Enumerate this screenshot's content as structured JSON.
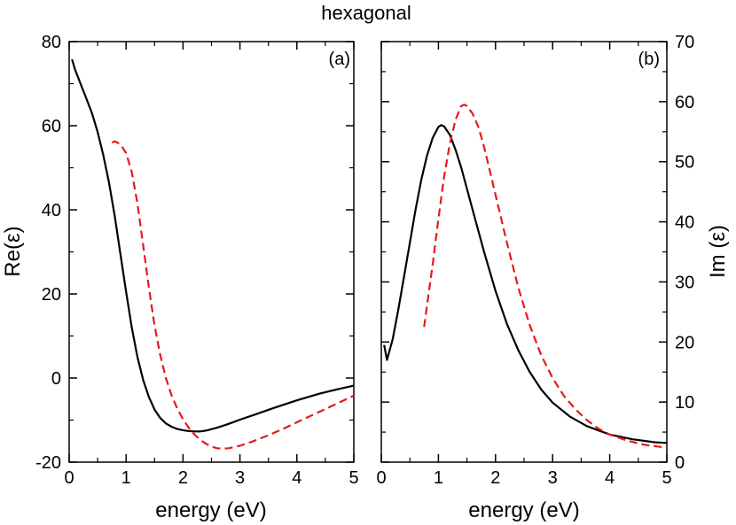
{
  "figure_title": "hexagonal",
  "colors": {
    "solid": "#000000",
    "dashed": "#e41a1c"
  },
  "chart_data": [
    {
      "type": "line",
      "panel_label": "(a)",
      "xlabel": "energy (eV)",
      "ylabel": "Re(ε)",
      "xlim": [
        0,
        5
      ],
      "ylim": [
        -20,
        80
      ],
      "xticks": [
        "0",
        "1",
        "2",
        "3",
        "4",
        "5"
      ],
      "yticks": [
        "-20",
        "0",
        "20",
        "40",
        "60",
        "80"
      ],
      "grid": false,
      "series": [
        {
          "style": "solid",
          "x": [
            0.05,
            0.1,
            0.2,
            0.3,
            0.4,
            0.5,
            0.6,
            0.7,
            0.8,
            0.9,
            1.0,
            1.1,
            1.2,
            1.3,
            1.4,
            1.5,
            1.6,
            1.7,
            1.8,
            1.9,
            2.0,
            2.1,
            2.2,
            2.3,
            2.4,
            2.6,
            2.8,
            3.0,
            3.3,
            3.6,
            4.0,
            4.4,
            4.8,
            5.0
          ],
          "y": [
            75.8,
            73.5,
            70.0,
            66.5,
            63.0,
            58.5,
            53.0,
            46.5,
            38.5,
            29.5,
            20.5,
            12.0,
            5.0,
            -0.5,
            -4.5,
            -7.5,
            -9.5,
            -10.8,
            -11.6,
            -12.1,
            -12.4,
            -12.6,
            -12.7,
            -12.7,
            -12.5,
            -11.8,
            -10.9,
            -9.9,
            -8.5,
            -7.1,
            -5.3,
            -3.7,
            -2.4,
            -1.8
          ]
        },
        {
          "style": "dashed",
          "x": [
            0.75,
            0.8,
            0.9,
            1.0,
            1.1,
            1.2,
            1.3,
            1.4,
            1.5,
            1.6,
            1.7,
            1.8,
            1.9,
            2.0,
            2.1,
            2.2,
            2.3,
            2.4,
            2.5,
            2.6,
            2.7,
            2.8,
            3.0,
            3.2,
            3.5,
            3.8,
            4.1,
            4.4,
            4.7,
            5.0
          ],
          "y": [
            56.0,
            56.3,
            55.6,
            53.5,
            49.0,
            41.5,
            31.5,
            21.5,
            12.5,
            5.5,
            0.0,
            -4.2,
            -7.3,
            -9.8,
            -11.8,
            -13.4,
            -14.7,
            -15.6,
            -16.3,
            -16.7,
            -16.8,
            -16.7,
            -16.1,
            -15.2,
            -13.6,
            -11.8,
            -9.9,
            -8.0,
            -6.1,
            -4.2
          ]
        }
      ]
    },
    {
      "type": "line",
      "panel_label": "(b)",
      "xlabel": "energy (eV)",
      "ylabel": "Im (ε)",
      "ylabel_side": "right",
      "xlim": [
        0,
        5
      ],
      "ylim": [
        0,
        70
      ],
      "xticks": [
        "0",
        "1",
        "2",
        "3",
        "4",
        "5"
      ],
      "yticks": [
        "0",
        "10",
        "20",
        "30",
        "40",
        "50",
        "60",
        "70"
      ],
      "grid": false,
      "series": [
        {
          "style": "solid",
          "x": [
            0.05,
            0.1,
            0.2,
            0.3,
            0.4,
            0.5,
            0.6,
            0.7,
            0.8,
            0.9,
            1.0,
            1.05,
            1.1,
            1.2,
            1.3,
            1.4,
            1.5,
            1.6,
            1.8,
            2.0,
            2.2,
            2.4,
            2.6,
            2.8,
            3.0,
            3.3,
            3.6,
            4.0,
            4.4,
            4.8,
            5.0
          ],
          "y": [
            19.5,
            17.0,
            20.5,
            25.5,
            31.0,
            36.5,
            42.0,
            47.0,
            51.0,
            54.0,
            55.8,
            56.1,
            55.9,
            54.5,
            52.0,
            49.0,
            45.5,
            42.0,
            35.0,
            28.5,
            23.0,
            18.6,
            15.0,
            12.1,
            9.9,
            7.6,
            6.0,
            4.6,
            3.8,
            3.3,
            3.2
          ]
        },
        {
          "style": "dashed",
          "x": [
            0.75,
            0.8,
            0.9,
            1.0,
            1.1,
            1.2,
            1.3,
            1.4,
            1.45,
            1.5,
            1.6,
            1.7,
            1.8,
            1.9,
            2.0,
            2.2,
            2.4,
            2.6,
            2.8,
            3.0,
            3.2,
            3.4,
            3.6,
            3.8,
            4.0,
            4.3,
            4.6,
            5.0
          ],
          "y": [
            22.5,
            26.0,
            33.0,
            40.5,
            47.5,
            53.0,
            57.0,
            59.3,
            59.5,
            59.3,
            58.0,
            55.8,
            52.5,
            48.5,
            44.5,
            36.5,
            29.0,
            22.8,
            17.8,
            14.0,
            11.0,
            8.8,
            7.0,
            5.6,
            4.6,
            3.6,
            2.9,
            2.4
          ]
        }
      ]
    }
  ]
}
